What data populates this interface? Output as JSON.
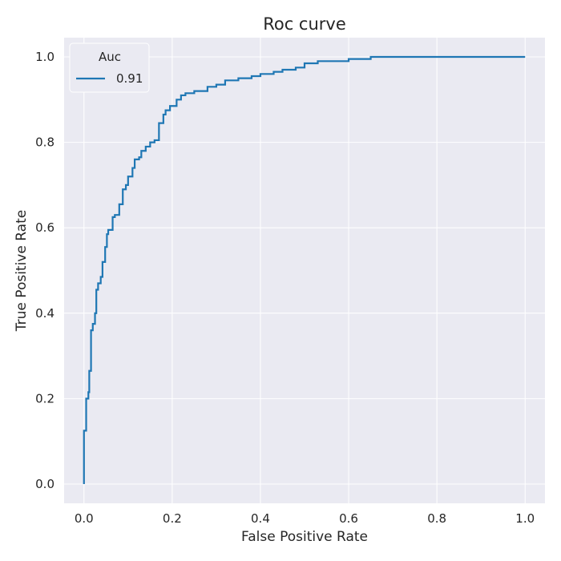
{
  "chart_data": {
    "type": "line",
    "title": "Roc curve",
    "xlabel": "False Positive Rate",
    "ylabel": "True Positive Rate",
    "xlim": [
      -0.045,
      1.045
    ],
    "ylim": [
      -0.045,
      1.045
    ],
    "xticks": [
      "0.0",
      "0.2",
      "0.4",
      "0.6",
      "0.8",
      "1.0"
    ],
    "yticks": [
      "0.0",
      "0.2",
      "0.4",
      "0.6",
      "0.8",
      "1.0"
    ],
    "grid": true,
    "legend": {
      "title": "Auc",
      "placement": "top-left"
    },
    "colors": {
      "background": "#eaeaf2",
      "grid": "#ffffff",
      "line": "#1f77b4"
    },
    "series": [
      {
        "name": "0.91",
        "x": [
          0.0,
          0.0,
          0.005,
          0.005,
          0.01,
          0.01,
          0.012,
          0.012,
          0.016,
          0.016,
          0.02,
          0.02,
          0.025,
          0.025,
          0.028,
          0.028,
          0.032,
          0.032,
          0.038,
          0.038,
          0.042,
          0.042,
          0.048,
          0.048,
          0.052,
          0.052,
          0.055,
          0.055,
          0.065,
          0.065,
          0.07,
          0.07,
          0.08,
          0.08,
          0.088,
          0.088,
          0.095,
          0.095,
          0.1,
          0.1,
          0.11,
          0.11,
          0.115,
          0.115,
          0.125,
          0.125,
          0.13,
          0.13,
          0.14,
          0.14,
          0.15,
          0.15,
          0.16,
          0.16,
          0.17,
          0.17,
          0.18,
          0.18,
          0.185,
          0.185,
          0.195,
          0.195,
          0.21,
          0.21,
          0.22,
          0.22,
          0.23,
          0.23,
          0.25,
          0.25,
          0.28,
          0.28,
          0.3,
          0.3,
          0.32,
          0.32,
          0.35,
          0.35,
          0.38,
          0.38,
          0.4,
          0.4,
          0.43,
          0.43,
          0.45,
          0.45,
          0.48,
          0.48,
          0.5,
          0.5,
          0.53,
          0.53,
          0.58,
          0.58,
          0.6,
          0.6,
          0.65,
          0.65,
          0.74,
          0.74,
          1.0
        ],
        "y": [
          0.0,
          0.125,
          0.125,
          0.2,
          0.2,
          0.215,
          0.215,
          0.265,
          0.265,
          0.36,
          0.36,
          0.375,
          0.375,
          0.4,
          0.4,
          0.455,
          0.455,
          0.47,
          0.47,
          0.485,
          0.485,
          0.52,
          0.52,
          0.555,
          0.555,
          0.585,
          0.585,
          0.595,
          0.595,
          0.625,
          0.625,
          0.63,
          0.63,
          0.655,
          0.655,
          0.69,
          0.69,
          0.7,
          0.7,
          0.72,
          0.72,
          0.74,
          0.74,
          0.76,
          0.76,
          0.765,
          0.765,
          0.78,
          0.78,
          0.79,
          0.79,
          0.8,
          0.8,
          0.805,
          0.805,
          0.845,
          0.845,
          0.865,
          0.865,
          0.875,
          0.875,
          0.885,
          0.885,
          0.9,
          0.9,
          0.91,
          0.91,
          0.915,
          0.915,
          0.92,
          0.92,
          0.93,
          0.93,
          0.935,
          0.935,
          0.945,
          0.945,
          0.95,
          0.95,
          0.955,
          0.955,
          0.96,
          0.96,
          0.965,
          0.965,
          0.97,
          0.97,
          0.975,
          0.975,
          0.985,
          0.985,
          0.99,
          0.99,
          0.99,
          0.99,
          0.995,
          0.995,
          1.0,
          1.0,
          1.0,
          1.0
        ]
      }
    ]
  }
}
